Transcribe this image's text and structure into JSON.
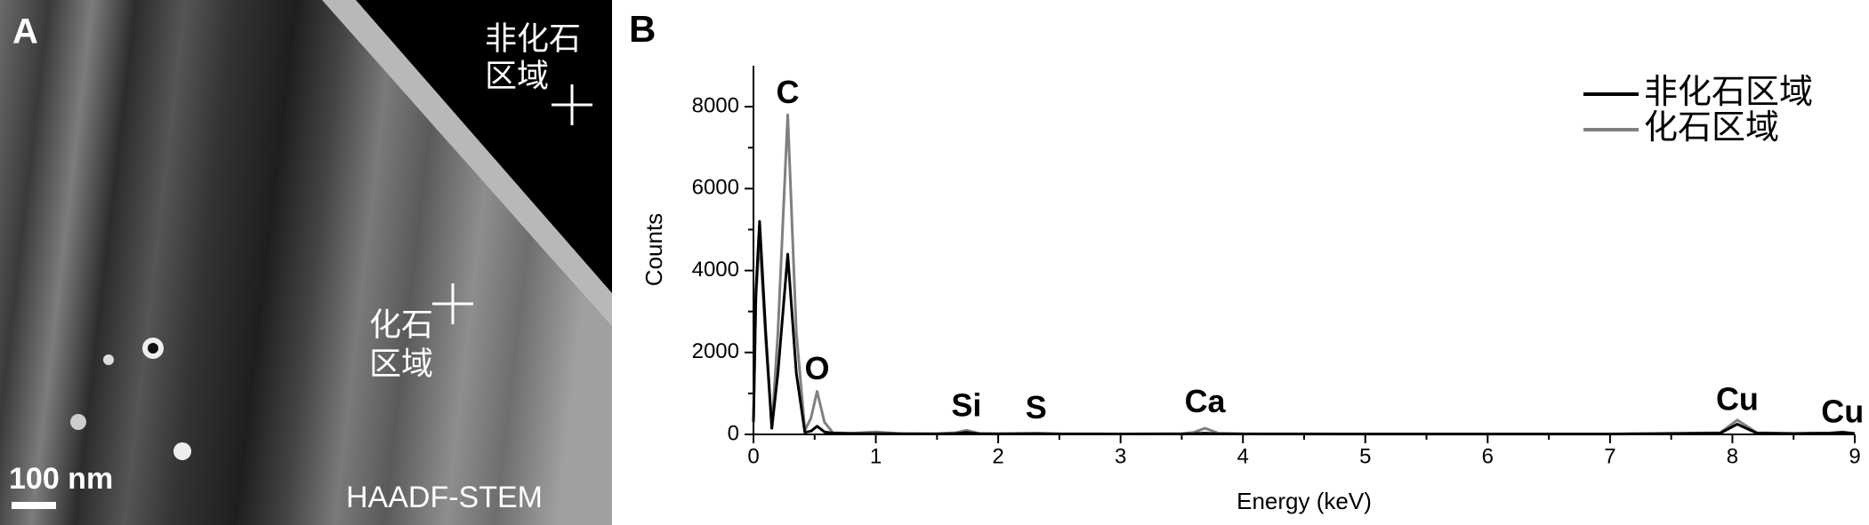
{
  "panel_a": {
    "label": "A",
    "region_1": [
      "非化石",
      "区域"
    ],
    "region_2": [
      "化石",
      "区域"
    ],
    "scale_bar": "100 nm",
    "mode": "HAADF-STEM"
  },
  "chart_data": {
    "type": "line",
    "label": "B",
    "x_label": "Energy (keV)",
    "y_label": "Counts",
    "x": [
      0,
      0.02,
      0.05,
      0.1,
      0.15,
      0.2,
      0.28,
      0.35,
      0.42,
      0.47,
      0.52,
      0.58,
      0.65,
      0.8,
      1.0,
      1.2,
      1.5,
      1.65,
      1.74,
      1.85,
      2.0,
      2.31,
      2.5,
      3.0,
      3.5,
      3.6,
      3.69,
      3.8,
      4.0,
      5.0,
      6.0,
      7.0,
      7.9,
      8.04,
      8.2,
      8.5,
      8.8,
      8.9,
      9.0
    ],
    "series": [
      {
        "name": "化石区域",
        "color": "#808080",
        "values": [
          300,
          3300,
          4800,
          2300,
          150,
          2500,
          7800,
          2500,
          100,
          400,
          1050,
          300,
          40,
          30,
          60,
          20,
          20,
          40,
          100,
          20,
          20,
          30,
          15,
          10,
          20,
          50,
          150,
          30,
          15,
          10,
          10,
          10,
          40,
          350,
          40,
          25,
          35,
          60,
          25
        ]
      },
      {
        "name": "非化石区域",
        "color": "#000000",
        "values": [
          300,
          3500,
          5200,
          2500,
          150,
          1500,
          4400,
          1500,
          50,
          80,
          200,
          60,
          30,
          20,
          20,
          15,
          10,
          20,
          50,
          15,
          10,
          15,
          10,
          10,
          10,
          15,
          30,
          12,
          10,
          8,
          8,
          8,
          30,
          250,
          30,
          20,
          30,
          50,
          20
        ]
      }
    ],
    "legend_order": [
      1,
      0
    ],
    "annotations": [
      {
        "text": "C",
        "x": 0.28,
        "y": 8300
      },
      {
        "text": "O",
        "x": 0.52,
        "y": 1550
      },
      {
        "text": "Si",
        "x": 1.74,
        "y": 650
      },
      {
        "text": "S",
        "x": 2.31,
        "y": 600
      },
      {
        "text": "Ca",
        "x": 3.69,
        "y": 750
      },
      {
        "text": "Cu",
        "x": 8.04,
        "y": 800
      },
      {
        "text": "Cu",
        "x": 8.9,
        "y": 500
      }
    ],
    "xlim": [
      0,
      9
    ],
    "xticks": [
      0,
      1,
      2,
      3,
      4,
      5,
      6,
      7,
      8,
      9
    ],
    "x_minor_ticks": [
      0.5,
      1.5,
      2.5,
      3.5,
      4.5,
      5.5,
      6.5,
      7.5,
      8.5
    ],
    "ylim": [
      0,
      9000
    ],
    "yticks": [
      0,
      2000,
      4000,
      6000,
      8000
    ],
    "y_minor_ticks": [
      1000,
      3000,
      5000,
      7000
    ],
    "legend": "upper right",
    "grid": false
  }
}
